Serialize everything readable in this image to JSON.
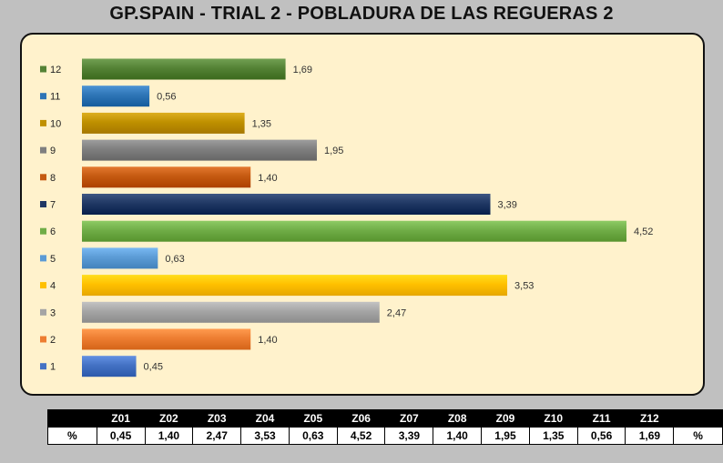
{
  "title": "GP.SPAIN - TRIAL 2 - POBLADURA DE LAS REGUERAS 2",
  "chart_data": {
    "type": "bar",
    "orientation": "horizontal",
    "categories": [
      "12",
      "11",
      "10",
      "9",
      "8",
      "7",
      "6",
      "5",
      "4",
      "3",
      "2",
      "1"
    ],
    "values": [
      1.69,
      0.56,
      1.35,
      1.95,
      1.4,
      3.39,
      4.52,
      0.63,
      3.53,
      2.47,
      1.4,
      0.45
    ],
    "value_labels": [
      "1,69",
      "0,56",
      "1,35",
      "1,95",
      "1,40",
      "3,39",
      "4,52",
      "0,63",
      "3,53",
      "2,47",
      "1,40",
      "0,45"
    ],
    "colors": [
      "#548235",
      "#2e75b6",
      "#bf9000",
      "#7f7f7f",
      "#c55a11",
      "#203864",
      "#70ad47",
      "#5b9bd5",
      "#ffc000",
      "#a5a5a5",
      "#ed7d31",
      "#4472c4"
    ],
    "xlim": [
      0,
      4.52
    ],
    "grid": false,
    "legend": "none",
    "background": "#fff2cc"
  },
  "table": {
    "header_row": [
      "",
      "Z01",
      "Z02",
      "Z03",
      "Z04",
      "Z05",
      "Z06",
      "Z07",
      "Z08",
      "Z09",
      "Z10",
      "Z11",
      "Z12",
      ""
    ],
    "value_row": [
      "%",
      "0,45",
      "1,40",
      "2,47",
      "3,53",
      "0,63",
      "4,52",
      "3,39",
      "1,40",
      "1,95",
      "1,35",
      "0,56",
      "1,69",
      "%"
    ]
  }
}
